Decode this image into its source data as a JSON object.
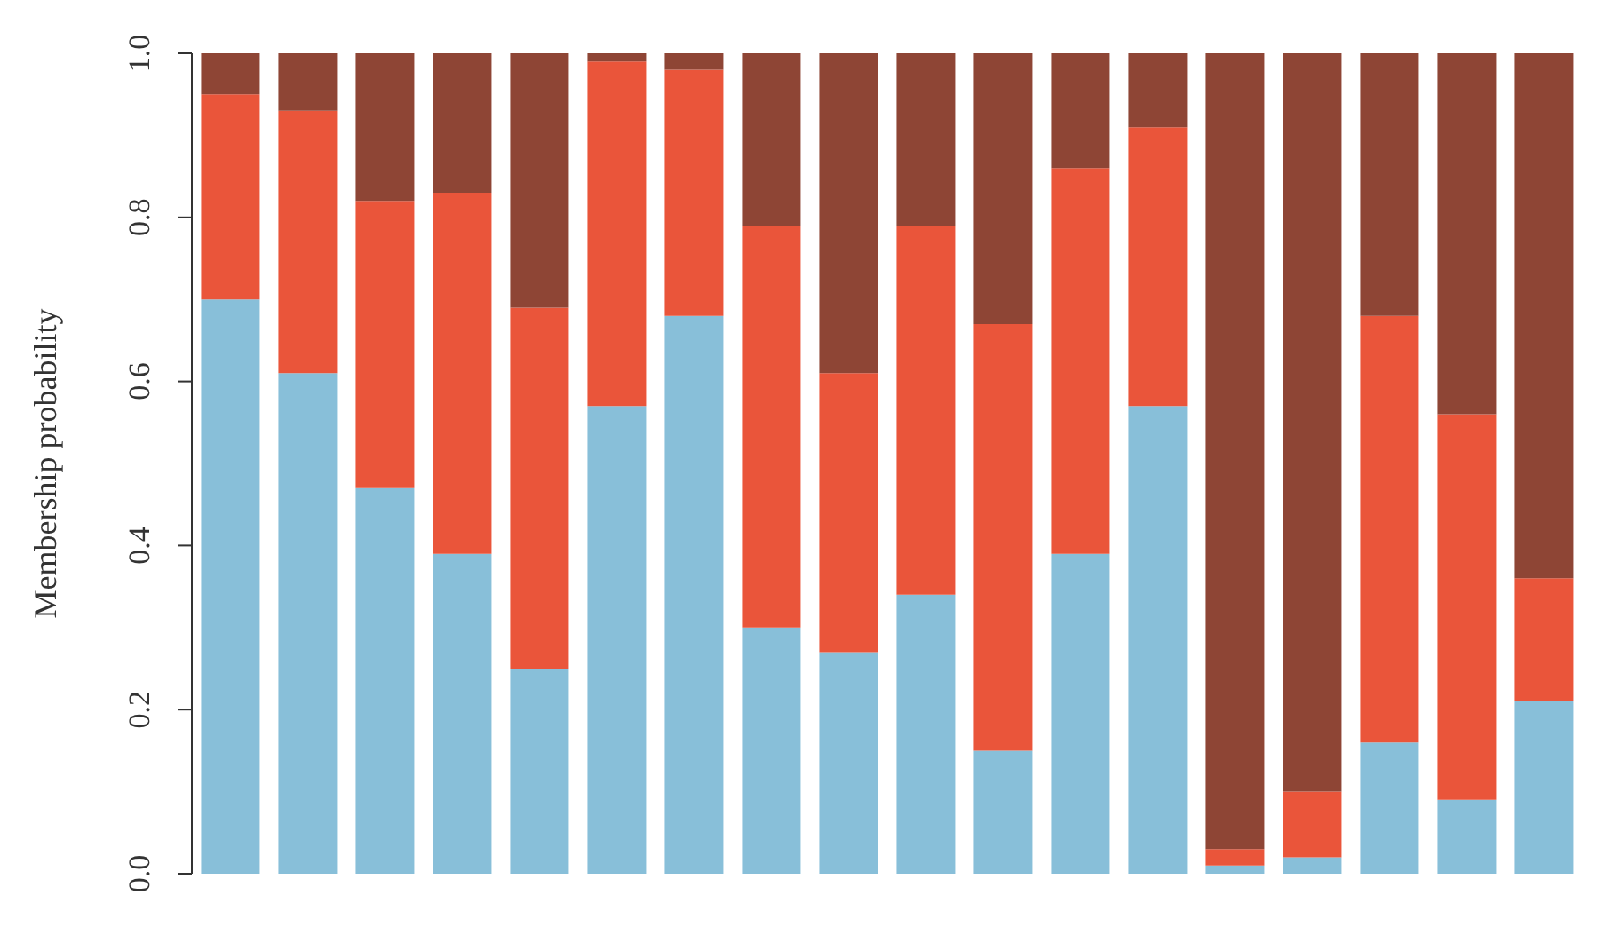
{
  "chart_data": {
    "type": "bar",
    "ylabel": "Membership probability",
    "stacked": true,
    "tick_labels": "y",
    "categories": [
      null,
      null,
      null,
      null,
      null,
      null,
      null,
      null,
      null,
      null,
      null,
      null,
      null,
      null,
      null,
      null,
      null,
      null
    ],
    "series": [
      {
        "color": "#88bfd9",
        "values": [
          0.7,
          0.61,
          0.47,
          0.39,
          0.25,
          0.57,
          0.68,
          0.3,
          0.27,
          0.34,
          0.15,
          0.39,
          0.57,
          0.01,
          0.02,
          0.16,
          0.09,
          0.21
        ]
      },
      {
        "color": "#ea553a",
        "values": [
          0.25,
          0.32,
          0.35,
          0.44,
          0.44,
          0.42,
          0.3,
          0.49,
          0.34,
          0.45,
          0.52,
          0.47,
          0.34,
          0.02,
          0.08,
          0.52,
          0.47,
          0.15
        ]
      },
      {
        "color": "#8e4535",
        "values": [
          0.05,
          0.07,
          0.18,
          0.17,
          0.31,
          0.01,
          0.02,
          0.21,
          0.39,
          0.21,
          0.33,
          0.14,
          0.09,
          0.97,
          0.9,
          0.32,
          0.44,
          0.64
        ]
      }
    ],
    "ylim": [
      0,
      1
    ],
    "yticks": [
      {
        "value": 0,
        "label": "0.0"
      },
      0.2,
      0.4,
      0.6,
      0.8,
      {
        "value": 1,
        "label": "1.0"
      }
    ]
  }
}
